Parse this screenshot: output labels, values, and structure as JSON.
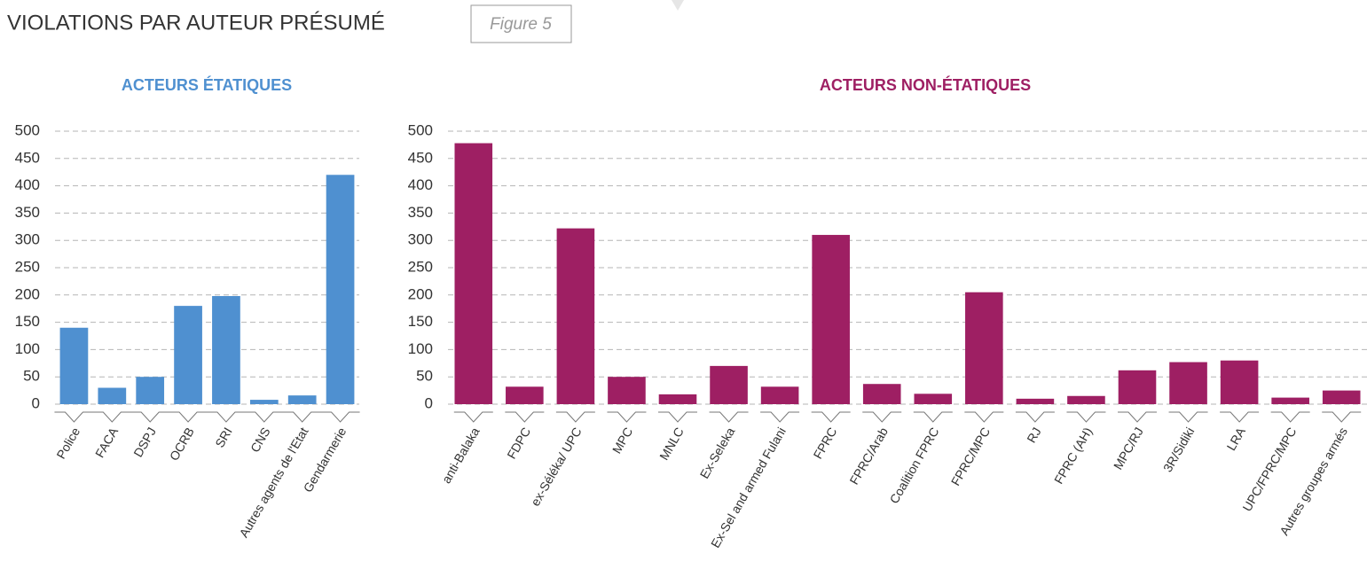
{
  "header": {
    "title": "VIOLATIONS PAR AUTEUR PRÉSUMÉ",
    "figure": "Figure 5"
  },
  "chart_data": [
    {
      "type": "bar",
      "title": "ACTEURS ÉTATIQUES",
      "color": "#4f90d0",
      "categories": [
        "Police",
        "FACA",
        "DSPJ",
        "OCRB",
        "SRI",
        "CNS",
        "Autres agents de l'Etat",
        "Gendarmerie"
      ],
      "values": [
        140,
        30,
        50,
        180,
        198,
        8,
        16,
        420
      ],
      "ylim": [
        0,
        500
      ],
      "yticks": [
        0,
        50,
        100,
        150,
        200,
        250,
        300,
        350,
        400,
        450,
        500
      ],
      "grid": true
    },
    {
      "type": "bar",
      "title": "ACTEURS NON-ÉTATIQUES",
      "color": "#9e1f63",
      "categories": [
        "anti-Balaka",
        "FDPC",
        "ex-Séléka/ UPC",
        "MPC",
        "MNLC",
        "Ex-Seleka",
        "Ex-Sel and armed Fulani",
        "FPRC",
        "FPRC/Arab",
        "Coalition FPRC",
        "FPRC/MPC",
        "RJ",
        "FPRC (AH)",
        "MPC/RJ",
        "3R/Sidiki",
        "LRA",
        "UPC/FPRC/MPC",
        "Autres groupes armés"
      ],
      "values": [
        478,
        32,
        322,
        50,
        18,
        70,
        32,
        310,
        37,
        19,
        205,
        10,
        15,
        62,
        77,
        80,
        12,
        25
      ],
      "ylim": [
        0,
        500
      ],
      "yticks": [
        0,
        50,
        100,
        150,
        200,
        250,
        300,
        350,
        400,
        450,
        500
      ],
      "grid": true
    }
  ]
}
